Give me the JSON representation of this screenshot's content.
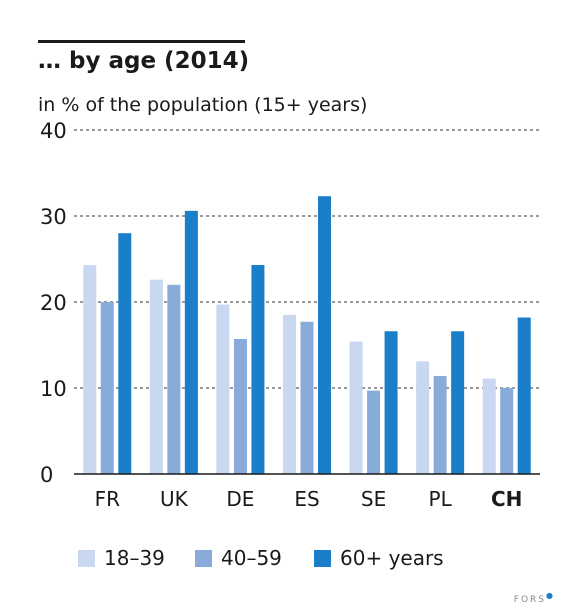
{
  "title": "… by age (2014)",
  "subtitle": "in % of the population (15+ years)",
  "logo": "FORS",
  "colors": {
    "c1": "#c9d7f0",
    "c2": "#88abd9",
    "c3": "#1a7fc8"
  },
  "chart_data": {
    "type": "bar",
    "categories": [
      "FR",
      "UK",
      "DE",
      "ES",
      "SE",
      "PL",
      "CH"
    ],
    "highlight_category": "CH",
    "series": [
      {
        "name": "18–39",
        "values": [
          24.3,
          22.6,
          19.7,
          18.5,
          15.4,
          13.1,
          11.1
        ]
      },
      {
        "name": "40–59",
        "values": [
          20.0,
          22.0,
          15.7,
          17.7,
          9.7,
          11.4,
          10.0
        ]
      },
      {
        "name": "60+ years",
        "values": [
          28.0,
          30.6,
          24.3,
          32.3,
          16.6,
          16.6,
          18.2
        ]
      }
    ],
    "yticks": [
      0,
      10,
      20,
      30,
      40
    ],
    "ylim": [
      0,
      40
    ],
    "grid": true,
    "legend_position": "bottom"
  }
}
